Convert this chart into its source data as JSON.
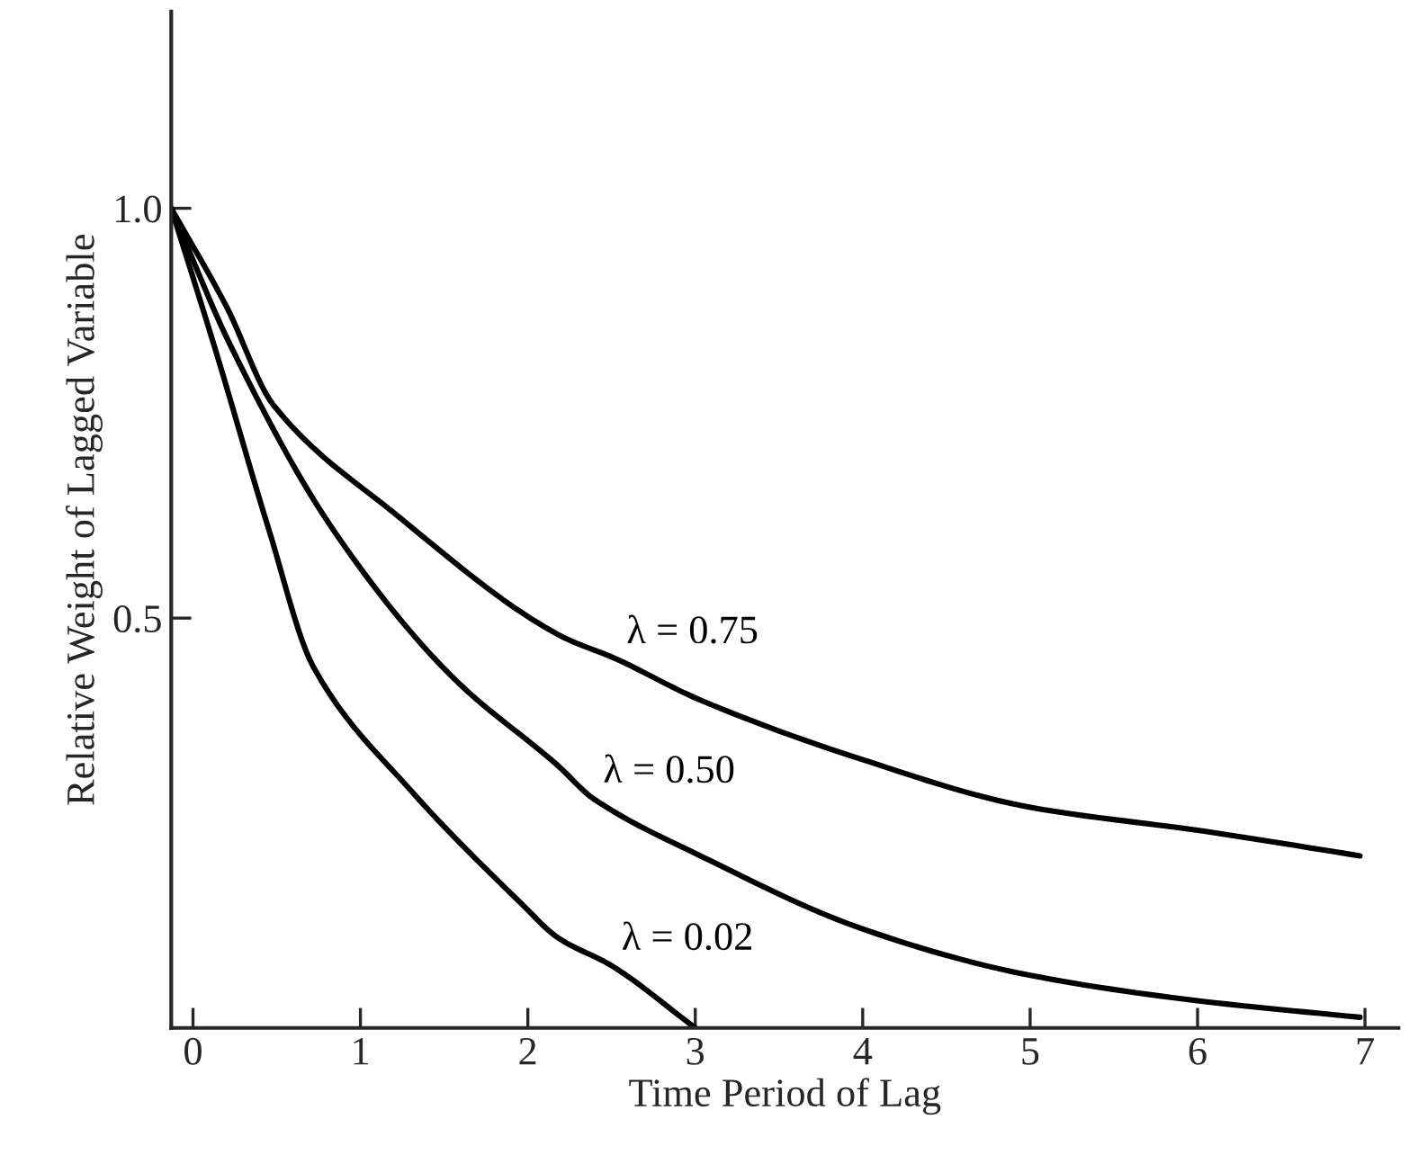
{
  "chart_data": {
    "type": "line",
    "xlabel": "Time Period of Lag",
    "ylabel": "Relative Weight of Lagged Variable",
    "xlim": [
      -0.13,
      7.2
    ],
    "ylim": [
      0,
      1.24
    ],
    "xticks": [
      0,
      1,
      2,
      3,
      4,
      5,
      6,
      7
    ],
    "yticks": [
      {
        "value": 0.5,
        "label": "0.5"
      },
      {
        "value": 1.0,
        "label": "1.0"
      }
    ],
    "grid": false,
    "legend": false,
    "marker": "none",
    "line_style": "solid",
    "series": [
      {
        "name": "λ = 0.75",
        "color": "#000000",
        "x": [
          -0.13,
          0.2,
          0.48,
          1.19,
          2.18,
          2.53,
          3.03,
          3.96,
          4.98,
          6.04,
          6.97
        ],
        "values": [
          1.0,
          0.88,
          0.76,
          0.63,
          0.48,
          0.45,
          0.4,
          0.33,
          0.27,
          0.24,
          0.21
        ]
      },
      {
        "name": "λ = 0.50",
        "color": "#000000",
        "x": [
          -0.13,
          0.23,
          0.83,
          1.54,
          2.18,
          2.39,
          3.03,
          4.01,
          4.98,
          6.01,
          6.97
        ],
        "values": [
          1.0,
          0.83,
          0.61,
          0.43,
          0.32,
          0.28,
          0.21,
          0.12,
          0.065,
          0.033,
          0.013
        ]
      },
      {
        "name": "λ = 0.02",
        "color": "#000000",
        "x": [
          -0.13,
          0.13,
          0.45,
          0.72,
          1.3,
          1.97,
          2.18,
          2.5,
          3.0
        ],
        "values": [
          1.0,
          0.83,
          0.61,
          0.44,
          0.29,
          0.15,
          0.11,
          0.076,
          0.0
        ]
      }
    ]
  }
}
